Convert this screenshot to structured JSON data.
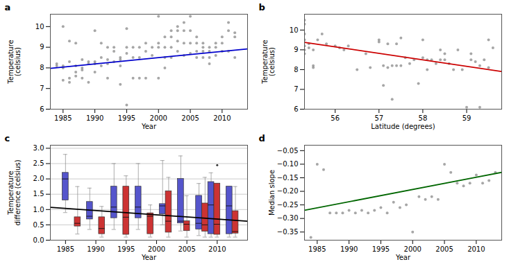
{
  "chart_data": [
    {
      "type": "scatter",
      "title": "a",
      "xlabel": "Year",
      "ylabel": "Temperature\n(celsius)",
      "xlim": [
        1983,
        2014
      ],
      "ylim": [
        6,
        10.6
      ],
      "xticks": [
        1985,
        1990,
        1995,
        2000,
        2005,
        2010
      ],
      "yticks": [
        6,
        7,
        8,
        9,
        10
      ],
      "series": [
        {
          "type": "scatter",
          "color": "#888888",
          "x": [
            1984,
            1984,
            1985,
            1985,
            1985,
            1985,
            1986,
            1986,
            1986,
            1986,
            1987,
            1987,
            1987,
            1987,
            1988,
            1988,
            1988,
            1988,
            1989,
            1989,
            1989,
            1990,
            1990,
            1990,
            1990,
            1991,
            1991,
            1991,
            1992,
            1992,
            1992,
            1992,
            1993,
            1993,
            1993,
            1994,
            1994,
            1994,
            1994,
            1995,
            1995,
            1995,
            1995,
            1996,
            1996,
            1996,
            1997,
            1997,
            1997,
            1998,
            1998,
            1998,
            1999,
            1999,
            2000,
            2000,
            2000,
            2000,
            2001,
            2001,
            2001,
            2001,
            2002,
            2002,
            2002,
            2002,
            2003,
            2003,
            2003,
            2003,
            2004,
            2004,
            2004,
            2004,
            2005,
            2005,
            2005,
            2005,
            2006,
            2006,
            2006,
            2006,
            2007,
            2007,
            2007,
            2007,
            2008,
            2008,
            2008,
            2008,
            2009,
            2009,
            2009,
            2010,
            2010,
            2010,
            2011,
            2011,
            2011,
            2012,
            2012,
            2012
          ],
          "values": [
            8.1,
            8.2,
            10.0,
            8.1,
            7.4,
            8.0,
            9.3,
            8.3,
            7.3,
            7.5,
            9.2,
            8.1,
            7.6,
            7.8,
            8.4,
            7.9,
            7.5,
            8.0,
            8.3,
            8.2,
            7.3,
            9.8,
            8.3,
            8.2,
            7.8,
            9.2,
            8.5,
            8.1,
            9.0,
            8.4,
            8.2,
            7.5,
            9.0,
            8.8,
            8.3,
            8.5,
            8.4,
            8.1,
            7.2,
            9.9,
            9.0,
            8.7,
            6.2,
            9.0,
            8.5,
            7.5,
            9.0,
            8.5,
            7.5,
            9.2,
            8.8,
            7.5,
            9.0,
            8.6,
            10.5,
            9.2,
            9.0,
            7.5,
            9.5,
            9.0,
            8.5,
            8.0,
            9.8,
            9.5,
            9.0,
            8.5,
            10.0,
            9.8,
            9.3,
            8.8,
            10.2,
            9.8,
            9.2,
            8.6,
            10.5,
            9.8,
            9.2,
            8.7,
            9.5,
            9.2,
            8.8,
            8.5,
            9.2,
            9.0,
            8.8,
            8.5,
            9.0,
            8.8,
            8.5,
            8.2,
            9.2,
            9.0,
            8.6,
            9.5,
            9.2,
            8.8,
            10.2,
            9.8,
            8.8,
            9.7,
            9.5,
            8.5
          ]
        },
        {
          "type": "line",
          "color": "#0000cc",
          "x": [
            1983,
            2014
          ],
          "values": [
            7.98,
            8.92
          ]
        }
      ]
    },
    {
      "type": "scatter",
      "title": "b",
      "xlabel": "Latitude (degrees)",
      "ylabel": "Temperature\n(celsius)",
      "xlim": [
        55.3,
        59.8
      ],
      "ylim": [
        6,
        10.8
      ],
      "xticks": [
        56,
        57,
        58,
        59
      ],
      "yticks": [
        6,
        7,
        8,
        9,
        10
      ],
      "series": [
        {
          "type": "scatter",
          "color": "#888888",
          "x": [
            55.3,
            55.3,
            55.3,
            55.3,
            55.3,
            55.3,
            55.3,
            55.4,
            55.4,
            55.5,
            55.5,
            55.5,
            55.6,
            55.7,
            55.8,
            56.0,
            56.1,
            56.2,
            56.3,
            56.5,
            56.7,
            56.8,
            57.0,
            57.0,
            57.1,
            57.1,
            57.2,
            57.2,
            57.3,
            57.3,
            57.4,
            57.4,
            57.5,
            57.5,
            57.6,
            57.7,
            57.8,
            57.9,
            58.0,
            58.0,
            58.1,
            58.1,
            58.2,
            58.3,
            58.4,
            58.4,
            58.5,
            58.5,
            58.6,
            58.7,
            58.8,
            58.9,
            59.0,
            59.1,
            59.1,
            59.2,
            59.3,
            59.3,
            59.4,
            59.5,
            59.5,
            59.6
          ],
          "values": [
            10.5,
            10.3,
            9.8,
            9.5,
            9.2,
            9.0,
            8.8,
            9.3,
            9.1,
            8.2,
            9.0,
            8.1,
            9.5,
            9.8,
            9.3,
            9.2,
            9.1,
            9.0,
            9.2,
            8.0,
            8.8,
            8.1,
            9.5,
            9.4,
            8.2,
            7.2,
            9.3,
            8.1,
            8.2,
            6.5,
            9.3,
            8.2,
            9.6,
            8.2,
            8.6,
            8.3,
            8.5,
            7.3,
            9.5,
            8.6,
            8.5,
            8.0,
            8.5,
            8.3,
            9.0,
            8.5,
            8.8,
            8.5,
            8.3,
            8.0,
            9.0,
            8.0,
            6.1,
            8.8,
            8.5,
            8.4,
            8.2,
            6.1,
            8.5,
            9.5,
            8.1,
            9.1
          ]
        },
        {
          "type": "line",
          "color": "#cc0000",
          "x": [
            55.3,
            59.8
          ],
          "values": [
            9.38,
            7.9
          ]
        }
      ]
    },
    {
      "type": "box",
      "title": "c",
      "xlabel": "Year",
      "ylabel": "Temperature\ndifference (celsius)",
      "xlim": [
        1982.5,
        2015
      ],
      "ylim": [
        0,
        3.1
      ],
      "xticks": [
        1985,
        1990,
        1995,
        2000,
        2005,
        2010
      ],
      "yticks": [
        {
          "value": 0,
          "label": "0.0"
        },
        0.5,
        {
          "value": 1,
          "label": "1.0"
        },
        1.5,
        {
          "value": 2,
          "label": "2.0"
        },
        2.5,
        {
          "value": 3,
          "label": "3.0"
        }
      ],
      "grid": "y",
      "series": [
        {
          "type": "box",
          "x": [
            1985,
            1987,
            1989,
            1991,
            1993,
            1995,
            1997,
            1999,
            2001,
            2002,
            2004,
            2005,
            2007,
            2008,
            2009,
            2010,
            2012,
            2013
          ],
          "colors": [
            "#5555cc",
            "#cc3333",
            "#5555cc",
            "#cc3333",
            "#5555cc",
            "#cc3333",
            "#5555cc",
            "#cc3333",
            "#5555cc",
            "#cc3333",
            "#5555cc",
            "#cc3333",
            "#5555cc",
            "#cc3333",
            "#5555cc",
            "#cc3333",
            "#5555cc",
            "#cc3333"
          ],
          "q1": [
            1.3,
            0.45,
            0.68,
            0.2,
            0.72,
            0.18,
            0.72,
            0.2,
            0.85,
            0.25,
            0.55,
            0.3,
            0.35,
            0.28,
            0.2,
            0.18,
            0.2,
            0.22
          ],
          "med": [
            2.0,
            0.55,
            0.78,
            0.38,
            1.08,
            0.75,
            1.08,
            0.78,
            1.12,
            0.62,
            0.62,
            0.52,
            0.55,
            0.5,
            1.15,
            0.52,
            1.12,
            0.28
          ],
          "q3": [
            2.2,
            0.75,
            1.25,
            0.75,
            1.75,
            1.75,
            1.75,
            0.88,
            1.18,
            1.6,
            2.0,
            0.62,
            1.45,
            1.2,
            1.9,
            1.85,
            1.75,
            0.95
          ],
          "whislo": [
            0.9,
            0.2,
            0.35,
            0.1,
            0.35,
            0.1,
            0.35,
            0.1,
            0.5,
            0.1,
            0.3,
            0.1,
            0.15,
            0.1,
            0.1,
            0.1,
            0.1,
            0.1
          ],
          "whishi": [
            2.8,
            1.75,
            1.7,
            1.1,
            2.5,
            2.1,
            2.5,
            1.15,
            2.6,
            2.05,
            2.75,
            1.45,
            1.85,
            2.05,
            2.2,
            1.85,
            1.75,
            1.75
          ],
          "fliers": [
            [],
            [],
            [],
            [],
            [],
            [],
            [],
            [],
            [],
            [],
            [],
            [],
            [],
            [],
            [],
            [
              2.45
            ],
            [],
            []
          ]
        },
        {
          "type": "line",
          "color": "#000000",
          "x": [
            1982.5,
            2015
          ],
          "values": [
            1.07,
            0.62
          ]
        }
      ]
    },
    {
      "type": "scatter",
      "title": "d",
      "xlabel": "Year",
      "ylabel": "Median slope",
      "xlim": [
        1983,
        2014
      ],
      "ylim": [
        -0.38,
        -0.03
      ],
      "xticks": [
        1985,
        1990,
        1995,
        2000,
        2005,
        2010
      ],
      "yticks": [
        {
          "value": -0.35,
          "label": "−0.35"
        },
        {
          "value": -0.3,
          "label": "−0.30"
        },
        {
          "value": -0.25,
          "label": "−0.25"
        },
        {
          "value": -0.2,
          "label": "−0.20"
        },
        {
          "value": -0.15,
          "label": "−0.15"
        },
        {
          "value": -0.1,
          "label": "−0.10"
        },
        {
          "value": -0.05,
          "label": "−0.05"
        }
      ],
      "series": [
        {
          "type": "scatter",
          "color": "#888888",
          "x": [
            1984,
            1985,
            1986,
            1987,
            1988,
            1989,
            1990,
            1991,
            1992,
            1993,
            1994,
            1995,
            1996,
            1997,
            1998,
            1999,
            2000,
            2001,
            2002,
            2003,
            2004,
            2005,
            2006,
            2007,
            2008,
            2009,
            2010,
            2011,
            2012,
            2013
          ],
          "values": [
            -0.37,
            -0.1,
            -0.12,
            -0.28,
            -0.28,
            -0.28,
            -0.27,
            -0.28,
            -0.27,
            -0.28,
            -0.27,
            -0.26,
            -0.28,
            -0.24,
            -0.26,
            -0.25,
            -0.35,
            -0.22,
            -0.23,
            -0.22,
            -0.23,
            -0.1,
            -0.13,
            -0.17,
            -0.18,
            -0.17,
            -0.14,
            -0.17,
            -0.16,
            -0.13
          ]
        },
        {
          "type": "line",
          "color": "#006600",
          "x": [
            1983,
            2014
          ],
          "values": [
            -0.27,
            -0.13
          ]
        }
      ]
    }
  ]
}
